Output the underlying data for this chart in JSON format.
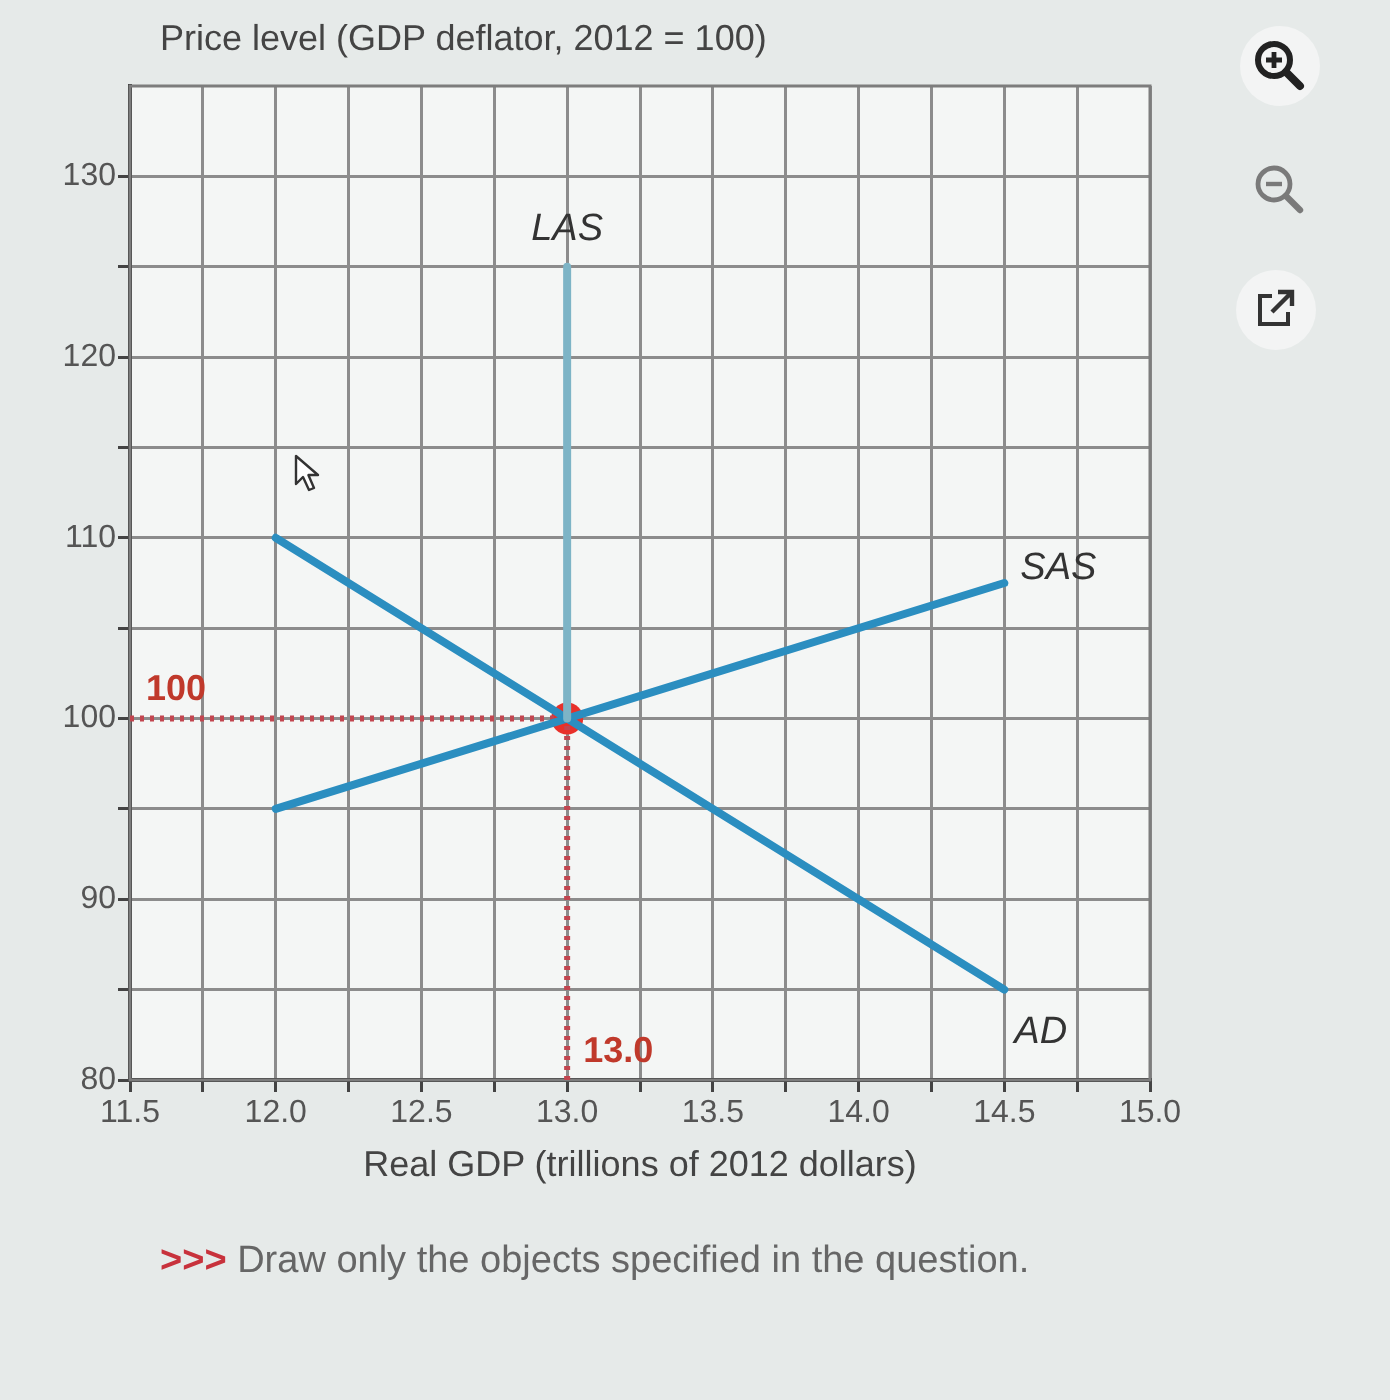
{
  "chart_data": {
    "type": "line",
    "ylabel": "Price level (GDP deflator, 2012 = 100)",
    "xlabel": "Real GDP (trillions of 2012 dollars)",
    "annotations": [
      {
        "text": "100",
        "x": 11.5,
        "y": 100
      },
      {
        "text": "13.0",
        "x": 13.0,
        "y": 80
      },
      ">>> Draw only the objects specified in the question."
    ],
    "series": [
      {
        "name": "LAS",
        "color": "#7db4c6",
        "x": [
          13.0,
          13.0
        ],
        "values": [
          100,
          125
        ]
      },
      {
        "name": "SAS",
        "color": "#2b8ec0",
        "x": [
          12.0,
          14.5
        ],
        "values": [
          95,
          107.5
        ]
      },
      {
        "name": "AD",
        "color": "#2b8ec0",
        "x": [
          12.0,
          14.5
        ],
        "values": [
          110,
          85
        ]
      },
      {
        "color": "#c2454f",
        "line_style": "dotted",
        "x": [
          11.5,
          13.0
        ],
        "values": [
          100,
          100
        ]
      },
      {
        "color": "#c2454f",
        "line_style": "dotted",
        "x": [
          13.0,
          13.0
        ],
        "values": [
          80,
          100
        ]
      },
      {
        "type": "scatter",
        "color": "#e8302a",
        "marker": "circle",
        "x": [
          13.0
        ],
        "values": [
          100
        ]
      }
    ],
    "xlim": [
      11.5,
      15.0
    ],
    "ylim": [
      80,
      135
    ],
    "xticks": [
      11.5,
      {
        "value": 11.75,
        "label": null
      },
      {
        "value": 12,
        "label": "12.0"
      },
      {
        "value": 12.25,
        "label": null
      },
      12.5,
      {
        "value": 12.75,
        "label": null
      },
      {
        "value": 13,
        "label": "13.0"
      },
      {
        "value": 13.25,
        "label": null
      },
      13.5,
      {
        "value": 13.75,
        "label": null
      },
      {
        "value": 14,
        "label": "14.0"
      },
      {
        "value": 14.25,
        "label": null
      },
      14.5,
      {
        "value": 14.75,
        "label": null
      },
      {
        "value": 15,
        "label": "15.0"
      }
    ],
    "yticks": [
      80,
      {
        "value": 85,
        "label": null
      },
      90,
      {
        "value": 95,
        "label": null
      },
      100,
      {
        "value": 105,
        "label": null
      },
      110,
      {
        "value": 115,
        "label": null
      },
      120,
      {
        "value": 125,
        "label": null
      },
      130
    ],
    "grid": true
  }
}
